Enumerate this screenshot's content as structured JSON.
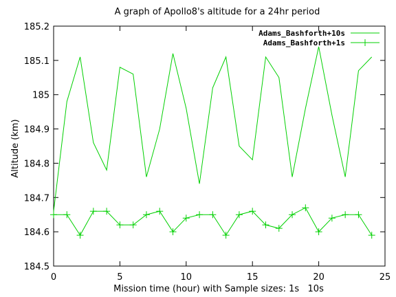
{
  "chart_data": {
    "type": "line",
    "title": "A graph of Apollo8's altitude for a 24hr period",
    "xlabel": "Mission time (hour) with Sample sizes: 1s   10s",
    "ylabel": "Altitude (km)",
    "xlim": [
      0,
      25
    ],
    "ylim": [
      184.5,
      185.2
    ],
    "xticks": [
      0,
      5,
      10,
      15,
      20,
      25
    ],
    "xtick_labels": [
      "0",
      "5",
      "10",
      "15",
      "20",
      "25"
    ],
    "yticks": [
      184.5,
      184.6,
      184.7,
      184.8,
      184.9,
      185,
      185.1,
      185.2
    ],
    "ytick_labels": [
      "184.5",
      "184.6",
      "184.7",
      "184.8",
      "184.9",
      "185",
      "185.1",
      "185.2"
    ],
    "grid": false,
    "legend_position": "top-right",
    "series": [
      {
        "name": "Adams_Bashforth+10s",
        "color": "#00d000",
        "marker": "none",
        "x": [
          0,
          1,
          2,
          3,
          4,
          5,
          6,
          7,
          8,
          9,
          10,
          11,
          12,
          13,
          14,
          15,
          16,
          17,
          18,
          19,
          20,
          21,
          22,
          23,
          24
        ],
        "y": [
          184.66,
          184.98,
          185.11,
          184.86,
          184.78,
          185.08,
          185.06,
          184.76,
          184.9,
          185.12,
          184.96,
          184.74,
          185.02,
          185.11,
          184.85,
          184.81,
          185.11,
          185.05,
          184.76,
          184.96,
          185.14,
          184.94,
          184.76,
          185.07,
          185.11
        ]
      },
      {
        "name": "Adams_Bashforth+1s",
        "color": "#00d000",
        "marker": "plus",
        "x": [
          0,
          1,
          2,
          3,
          4,
          5,
          6,
          7,
          8,
          9,
          10,
          11,
          12,
          13,
          14,
          15,
          16,
          17,
          18,
          19,
          20,
          21,
          22,
          23,
          24
        ],
        "y": [
          184.65,
          184.65,
          184.59,
          184.66,
          184.66,
          184.62,
          184.62,
          184.65,
          184.66,
          184.6,
          184.64,
          184.65,
          184.65,
          184.59,
          184.65,
          184.66,
          184.62,
          184.61,
          184.65,
          184.67,
          184.6,
          184.64,
          184.65,
          184.65,
          184.59
        ]
      }
    ]
  }
}
